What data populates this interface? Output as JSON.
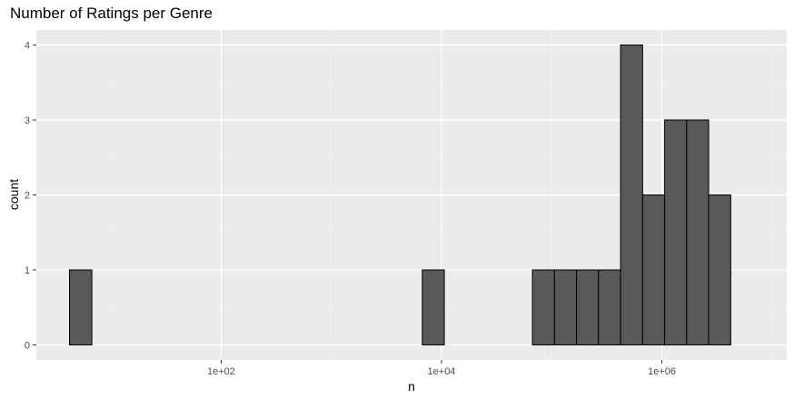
{
  "chart_data": {
    "type": "bar",
    "title": "Number of Ratings per Genre",
    "xlabel": "n",
    "ylabel": "count",
    "x_scale": "log10",
    "x_ticks": [
      {
        "value": 100,
        "label": "1e+02"
      },
      {
        "value": 10000,
        "label": "1e+04"
      },
      {
        "value": 1000000,
        "label": "1e+06"
      }
    ],
    "y_ticks": [
      0,
      1,
      2,
      3,
      4
    ],
    "xlim": [
      2.1,
      13600000
    ],
    "ylim": [
      -0.2,
      4.2
    ],
    "bins": [
      {
        "from": 4.2,
        "to": 6.7,
        "count": 1
      },
      {
        "from": 6.7,
        "to": 10.6,
        "count": 0
      },
      {
        "from": 10.6,
        "to": 16.8,
        "count": 0
      },
      {
        "from": 16.8,
        "to": 26.6,
        "count": 0
      },
      {
        "from": 26.6,
        "to": 42.2,
        "count": 0
      },
      {
        "from": 42.2,
        "to": 66.9,
        "count": 0
      },
      {
        "from": 66.9,
        "to": 106,
        "count": 0
      },
      {
        "from": 106,
        "to": 168,
        "count": 0
      },
      {
        "from": 168,
        "to": 266,
        "count": 0
      },
      {
        "from": 266,
        "to": 422,
        "count": 0
      },
      {
        "from": 422,
        "to": 669,
        "count": 0
      },
      {
        "from": 669,
        "to": 1060,
        "count": 0
      },
      {
        "from": 1060,
        "to": 1680,
        "count": 0
      },
      {
        "from": 1680,
        "to": 2660,
        "count": 0
      },
      {
        "from": 2660,
        "to": 4220,
        "count": 0
      },
      {
        "from": 4220,
        "to": 6690,
        "count": 0
      },
      {
        "from": 6690,
        "to": 10600,
        "count": 1
      },
      {
        "from": 10600,
        "to": 16800,
        "count": 0
      },
      {
        "from": 16800,
        "to": 26600,
        "count": 0
      },
      {
        "from": 26600,
        "to": 42200,
        "count": 0
      },
      {
        "from": 42200,
        "to": 66900,
        "count": 0
      },
      {
        "from": 66900,
        "to": 106000,
        "count": 1
      },
      {
        "from": 106000,
        "to": 168000,
        "count": 1
      },
      {
        "from": 168000,
        "to": 266000,
        "count": 1
      },
      {
        "from": 266000,
        "to": 422000,
        "count": 1
      },
      {
        "from": 422000,
        "to": 669000,
        "count": 4
      },
      {
        "from": 669000,
        "to": 1060000,
        "count": 2
      },
      {
        "from": 1060000,
        "to": 1680000,
        "count": 3
      },
      {
        "from": 1680000,
        "to": 2660000,
        "count": 3
      },
      {
        "from": 2660000,
        "to": 4220000,
        "count": 2
      }
    ],
    "grid": true,
    "colors": {
      "panel_background": "#ebebeb",
      "grid_major": "#ffffff",
      "grid_minor": "#f5f5f5",
      "bar_fill": "#595959",
      "bar_outline": "#000000"
    }
  }
}
